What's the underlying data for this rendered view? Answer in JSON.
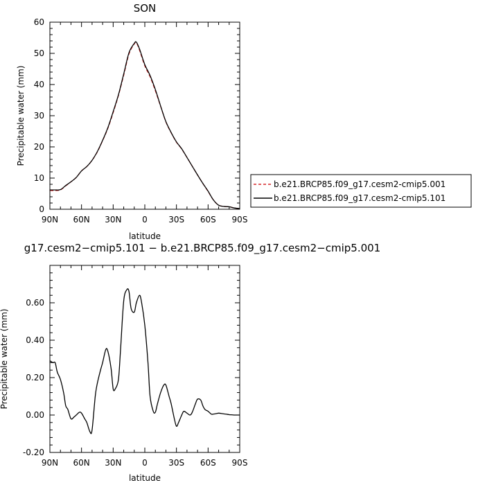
{
  "chart_data": [
    {
      "type": "line",
      "title": "SON",
      "xlabel": "latitude",
      "ylabel": "Precipitable water (mm)",
      "xlim": [
        90,
        -90
      ],
      "ylim": [
        0,
        60
      ],
      "x_ticks": [
        90,
        60,
        30,
        0,
        -30,
        -60,
        -90
      ],
      "x_tick_labels": [
        "90N",
        "60N",
        "30N",
        "0",
        "30S",
        "60S",
        "90S"
      ],
      "y_ticks": [
        0,
        10,
        20,
        30,
        40,
        50,
        60
      ],
      "y_tick_labels": [
        "0",
        "10",
        "20",
        "30",
        "40",
        "50",
        "60"
      ],
      "legend": {
        "placement": "right",
        "entries": [
          {
            "label": "b.e21.BRCP85.f09_g17.cesm2-cmip5.001",
            "color": "#d62728",
            "dash": "dashed"
          },
          {
            "label": "b.e21.BRCP85.f09_g17.cesm2-cmip5.101",
            "color": "#000000",
            "dash": "solid"
          }
        ]
      },
      "series": [
        {
          "name": "b.e21.BRCP85.f09_g17.cesm2-cmip5.001",
          "color": "#d62728",
          "dash": "dashed",
          "x": [
            90,
            85,
            80,
            75,
            70,
            65,
            60,
            55,
            50,
            45,
            40,
            35,
            30,
            25,
            20,
            15,
            10,
            8,
            5,
            0,
            -5,
            -10,
            -15,
            -20,
            -25,
            -30,
            -35,
            -40,
            -45,
            -50,
            -55,
            -60,
            -65,
            -70,
            -75,
            -80,
            -85,
            -90
          ],
          "y": [
            6.0,
            6.0,
            6.2,
            7.5,
            8.8,
            10.2,
            12.3,
            13.7,
            15.7,
            18.4,
            22.0,
            26.0,
            31.0,
            36.5,
            43.0,
            49.8,
            53.0,
            53.4,
            51.0,
            46.0,
            42.5,
            38.0,
            33.0,
            28.0,
            24.5,
            21.5,
            19.3,
            16.6,
            13.8,
            11.0,
            8.3,
            5.7,
            3.0,
            1.3,
            0.9,
            0.8,
            0.4,
            0.2
          ]
        },
        {
          "name": "b.e21.BRCP85.f09_g17.cesm2-cmip5.101",
          "color": "#000000",
          "dash": "solid",
          "x": [
            90,
            85,
            80,
            75,
            70,
            65,
            60,
            55,
            50,
            45,
            40,
            35,
            30,
            25,
            20,
            15,
            10,
            8,
            5,
            0,
            -5,
            -10,
            -15,
            -20,
            -25,
            -30,
            -35,
            -40,
            -45,
            -50,
            -55,
            -60,
            -65,
            -70,
            -75,
            -80,
            -85,
            -90
          ],
          "y": [
            6.2,
            6.2,
            6.3,
            7.6,
            8.8,
            10.2,
            12.3,
            13.7,
            15.7,
            18.5,
            22.1,
            26.2,
            31.3,
            36.7,
            43.4,
            50.2,
            53.2,
            53.6,
            51.4,
            46.4,
            42.9,
            38.4,
            33.1,
            28.1,
            24.6,
            21.6,
            19.4,
            16.6,
            13.8,
            11.0,
            8.3,
            5.8,
            3.0,
            1.3,
            0.9,
            0.8,
            0.4,
            0.2
          ]
        }
      ]
    },
    {
      "type": "line",
      "title": "g17.cesm2−cmip5.101 − b.e21.BRCP85.f09_g17.cesm2−cmip5.001",
      "xlabel": "latitude",
      "ylabel": "Precipitable water (mm)",
      "xlim": [
        90,
        -90
      ],
      "ylim": [
        -0.2,
        0.8
      ],
      "x_ticks": [
        90,
        60,
        30,
        0,
        -30,
        -60,
        -90
      ],
      "x_tick_labels": [
        "90N",
        "60N",
        "30N",
        "0",
        "30S",
        "60S",
        "90S"
      ],
      "y_ticks": [
        -0.2,
        0,
        0.2,
        0.4,
        0.6
      ],
      "y_tick_labels": [
        "-0.20",
        "0.00",
        "0.20",
        "0.40",
        "0.60"
      ],
      "series": [
        {
          "color": "#000000",
          "dash": "solid",
          "x": [
            90,
            87,
            85,
            83,
            80,
            77,
            75,
            73,
            70,
            67,
            65,
            62,
            60,
            57,
            55,
            52,
            50,
            47,
            45,
            42,
            40,
            37,
            35,
            32,
            30,
            28,
            25,
            23,
            20,
            17,
            15,
            13,
            10,
            8,
            5,
            3,
            0,
            -3,
            -5,
            -8,
            -10,
            -12,
            -15,
            -18,
            -20,
            -23,
            -25,
            -28,
            -30,
            -32,
            -35,
            -37,
            -40,
            -43,
            -45,
            -48,
            -50,
            -53,
            -55,
            -57,
            -60,
            -63,
            -65,
            -68,
            -70,
            -73,
            -75,
            -78,
            -80,
            -83,
            -85,
            -88,
            -90
          ],
          "y": [
            0.29,
            0.28,
            0.28,
            0.23,
            0.19,
            0.12,
            0.05,
            0.03,
            -0.02,
            -0.01,
            0.0,
            0.015,
            0.01,
            -0.02,
            -0.04,
            -0.09,
            -0.08,
            0.1,
            0.17,
            0.24,
            0.28,
            0.35,
            0.34,
            0.25,
            0.14,
            0.14,
            0.19,
            0.35,
            0.61,
            0.67,
            0.66,
            0.57,
            0.55,
            0.6,
            0.64,
            0.6,
            0.48,
            0.28,
            0.1,
            0.02,
            0.015,
            0.06,
            0.12,
            0.16,
            0.16,
            0.1,
            0.06,
            -0.02,
            -0.06,
            -0.04,
            0.0,
            0.02,
            0.01,
            0.0,
            0.015,
            0.06,
            0.085,
            0.08,
            0.05,
            0.03,
            0.02,
            0.005,
            0.005,
            0.008,
            0.01,
            0.008,
            0.006,
            0.004,
            0.002,
            0.001,
            0.0,
            0.0,
            0.0
          ]
        }
      ]
    }
  ]
}
